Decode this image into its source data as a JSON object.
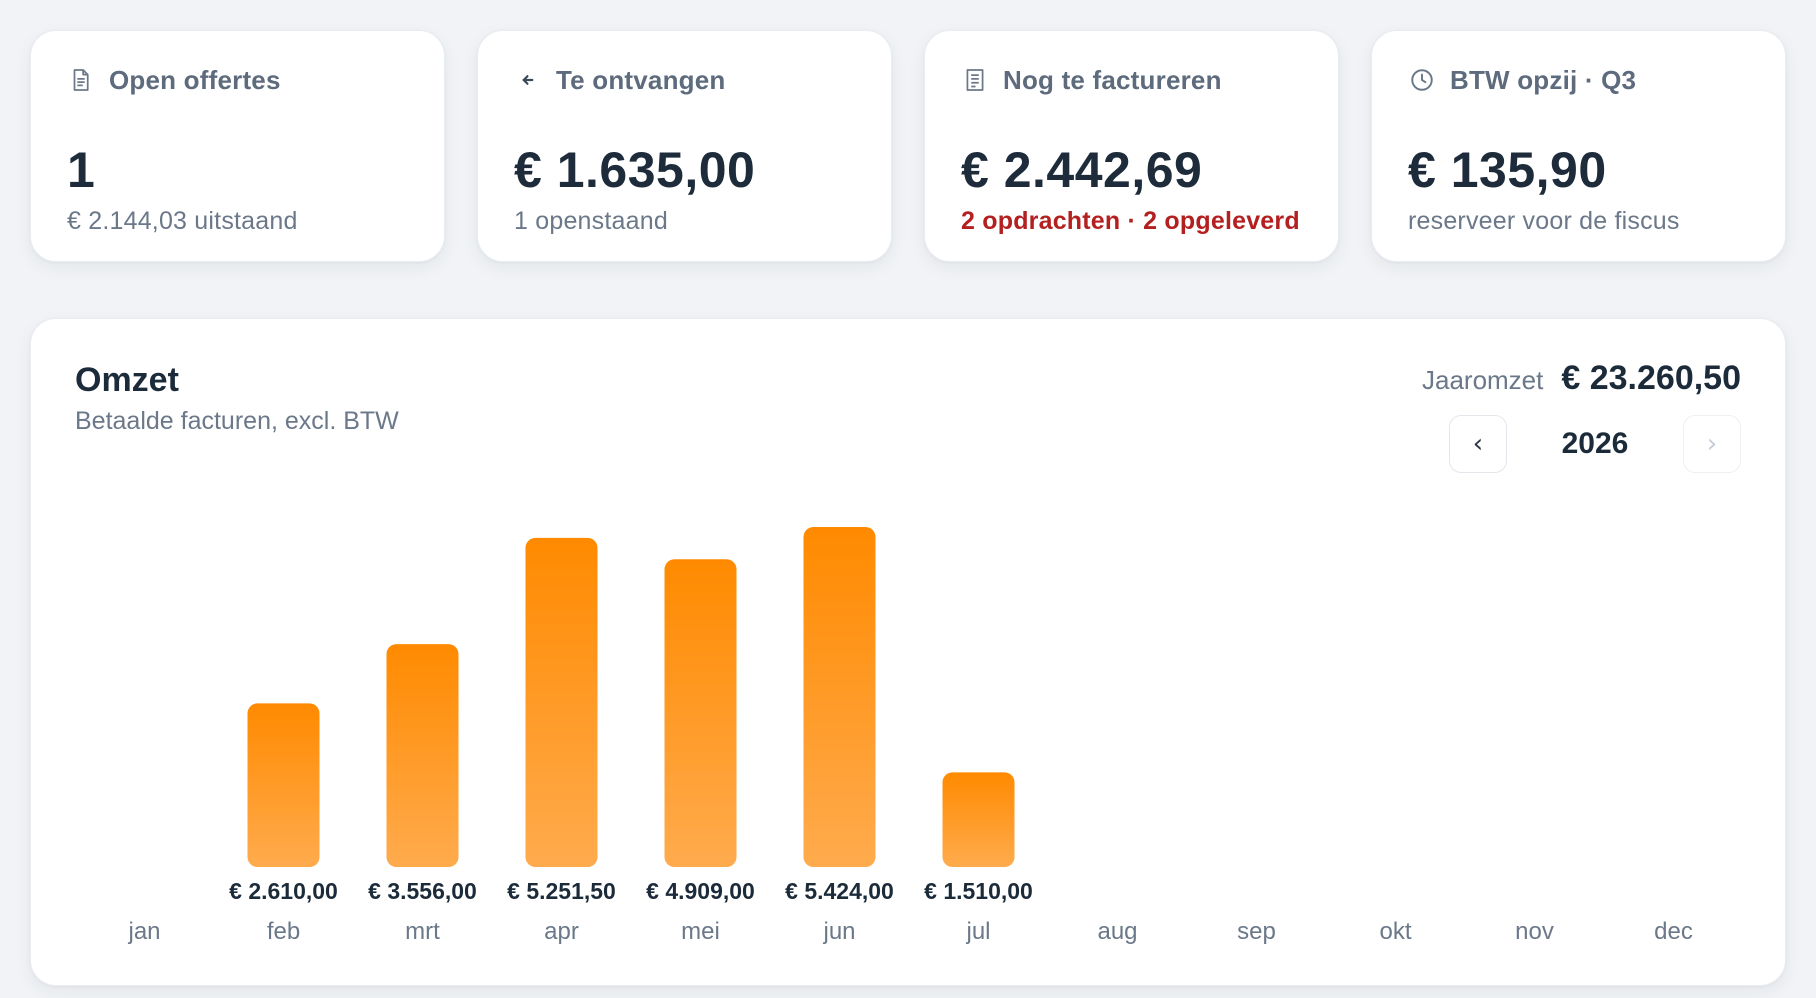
{
  "stats": [
    {
      "icon": "document-icon",
      "title": "Open offertes",
      "value": "1",
      "sub": "€ 2.144,03 uitstaand",
      "sub_alert": false
    },
    {
      "icon": "arrow-in-icon",
      "title": "Te ontvangen",
      "value": "€ 1.635,00",
      "sub": "1 openstaand",
      "sub_alert": false
    },
    {
      "icon": "receipt-icon",
      "title": "Nog te factureren",
      "value": "€ 2.442,69",
      "sub": "2 opdrachten · 2 opgeleverd",
      "sub_alert": true
    },
    {
      "icon": "clock-icon",
      "title": "BTW opzij · Q3",
      "value": "€ 135,90",
      "sub": "reserveer voor de fiscus",
      "sub_alert": false
    }
  ],
  "colors": {
    "bar_top": "#ff8a00",
    "bar_bottom": "#ffab4d",
    "alert": "#b42020"
  },
  "revenue": {
    "title": "Omzet",
    "subtitle": "Betaalde facturen, excl. BTW",
    "year_total_label": "Jaaromzet",
    "year_total_value": "€ 23.260,50",
    "year": "2026",
    "prev_icon": "chevron-left-icon",
    "next_icon": "chevron-right-icon"
  },
  "chart_data": {
    "type": "bar",
    "categories": [
      "jan",
      "feb",
      "mrt",
      "apr",
      "mei",
      "jun",
      "jul",
      "aug",
      "sep",
      "okt",
      "nov",
      "dec"
    ],
    "values": [
      0,
      2610.0,
      3556.0,
      5251.5,
      4909.0,
      5424.0,
      1510.0,
      0,
      0,
      0,
      0,
      0
    ],
    "value_labels": [
      "",
      "€ 2.610,00",
      "€ 3.556,00",
      "€ 5.251,50",
      "€ 4.909,00",
      "€ 5.424,00",
      "€ 1.510,00",
      "",
      "",
      "",
      "",
      ""
    ],
    "title": "Omzet",
    "subtitle": "Betaalde facturen, excl. BTW",
    "xlabel": "",
    "ylabel": "",
    "grid": false
  }
}
